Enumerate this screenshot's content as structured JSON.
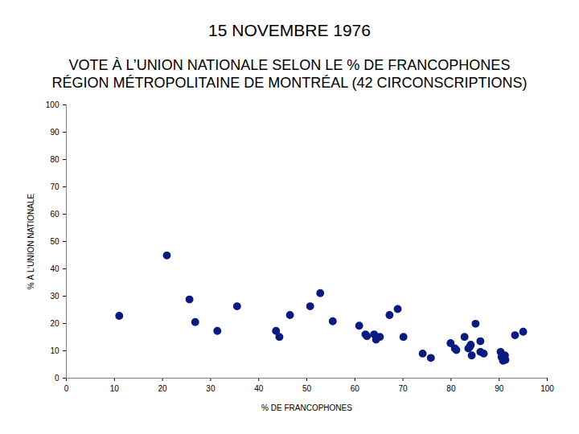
{
  "chart_data": {
    "type": "scatter",
    "title": "15 NOVEMBRE 1976",
    "subtitle": "VOTE À L’UNION NATIONALE SELON LE % DE FRANCOPHONES\nRÉGION MÉTROPOLITAINE DE MONTRÉAL (42 CIRCONSCRIPTIONS)",
    "x_label": "% DE FRANCOPHONES",
    "y_label": "% À L’UNION NATIONALE",
    "x": [
      11.0,
      20.9,
      25.6,
      26.8,
      31.4,
      35.5,
      43.6,
      44.3,
      46.5,
      50.7,
      52.8,
      55.4,
      60.9,
      62.2,
      62.5,
      64.0,
      64.4,
      65.2,
      67.2,
      68.9,
      70.1,
      74.1,
      75.8,
      79.9,
      80.8,
      81.1,
      82.8,
      83.6,
      83.9,
      84.1,
      84.3,
      85.1,
      86.1,
      86.1,
      86.8,
      90.3,
      90.5,
      90.8,
      91.2,
      91.3,
      93.3,
      95.0
    ],
    "values": [
      22.8,
      44.9,
      28.8,
      20.5,
      17.3,
      26.3,
      17.3,
      15.1,
      23.1,
      26.3,
      31.1,
      20.8,
      19.2,
      16.0,
      15.4,
      16.0,
      14.1,
      15.1,
      23.1,
      25.3,
      15.1,
      9.0,
      7.4,
      12.8,
      10.9,
      10.3,
      15.1,
      10.9,
      11.5,
      12.2,
      8.3,
      19.9,
      13.5,
      9.6,
      9.0,
      9.6,
      7.7,
      6.4,
      8.3,
      6.7,
      15.7,
      17.0
    ],
    "color": "#0a1a80",
    "marker": "circle",
    "xlim": [
      0,
      100
    ],
    "xticks": [
      0,
      10,
      20,
      30,
      40,
      50,
      60,
      70,
      80,
      90,
      100
    ],
    "ylim": [
      0,
      100
    ],
    "yticks": [
      0,
      10,
      20,
      30,
      40,
      50,
      60,
      70,
      80,
      90,
      100
    ],
    "grid": false
  }
}
